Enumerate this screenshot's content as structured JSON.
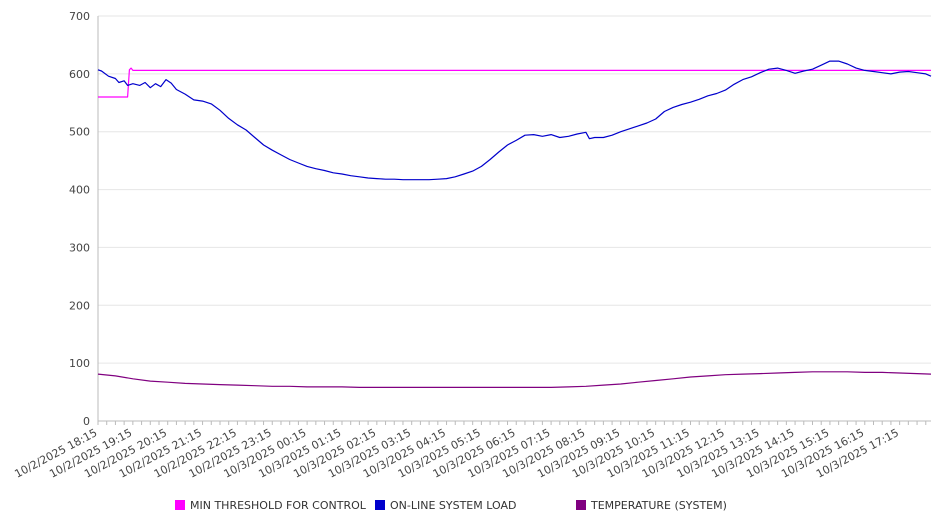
{
  "chart_data": {
    "type": "line",
    "title": "",
    "xlabel": "",
    "ylabel": "",
    "ylim": [
      0,
      700
    ],
    "y_ticks": [
      0,
      100,
      200,
      300,
      400,
      500,
      600,
      700
    ],
    "grid": true,
    "legend_position": "bottom",
    "x_tick_labels": [
      "10/2/2025 18:15",
      "10/2/2025 19:15",
      "10/2/2025 20:15",
      "10/2/2025 21:15",
      "10/2/2025 22:15",
      "10/2/2025 23:15",
      "10/3/2025 00:15",
      "10/3/2025 01:15",
      "10/3/2025 02:15",
      "10/3/2025 03:15",
      "10/3/2025 04:15",
      "10/3/2025 05:15",
      "10/3/2025 06:15",
      "10/3/2025 07:15",
      "10/3/2025 08:15",
      "10/3/2025 09:15",
      "10/3/2025 10:15",
      "10/3/2025 11:15",
      "10/3/2025 12:15",
      "10/3/2025 13:15",
      "10/3/2025 14:15",
      "10/3/2025 15:15",
      "10/3/2025 16:15",
      "10/3/2025 17:15"
    ],
    "x_unit": "hours from 10/2/2025 18:15",
    "x_max": 23.9,
    "series": [
      {
        "name": "MIN THRESHOLD FOR CONTROL",
        "color": "#ff00ff",
        "points": [
          [
            0,
            560
          ],
          [
            0.85,
            560
          ],
          [
            0.9,
            607
          ],
          [
            0.95,
            610
          ],
          [
            1.0,
            606
          ],
          [
            23.9,
            606
          ]
        ]
      },
      {
        "name": "ON-LINE SYSTEM LOAD",
        "color": "#0000cc",
        "points": [
          [
            0,
            607
          ],
          [
            0.1,
            605
          ],
          [
            0.3,
            596
          ],
          [
            0.5,
            592
          ],
          [
            0.6,
            585
          ],
          [
            0.75,
            588
          ],
          [
            0.85,
            580
          ],
          [
            1.0,
            583
          ],
          [
            1.2,
            580
          ],
          [
            1.35,
            585
          ],
          [
            1.5,
            576
          ],
          [
            1.65,
            583
          ],
          [
            1.8,
            578
          ],
          [
            1.95,
            590
          ],
          [
            2.1,
            584
          ],
          [
            2.25,
            573
          ],
          [
            2.5,
            565
          ],
          [
            2.75,
            555
          ],
          [
            3.0,
            553
          ],
          [
            3.25,
            548
          ],
          [
            3.5,
            537
          ],
          [
            3.75,
            523
          ],
          [
            4.0,
            512
          ],
          [
            4.25,
            503
          ],
          [
            4.5,
            490
          ],
          [
            4.75,
            477
          ],
          [
            5.0,
            468
          ],
          [
            5.25,
            460
          ],
          [
            5.5,
            452
          ],
          [
            5.75,
            446
          ],
          [
            6.0,
            440
          ],
          [
            6.25,
            436
          ],
          [
            6.5,
            433
          ],
          [
            6.75,
            429
          ],
          [
            7.0,
            427
          ],
          [
            7.25,
            424
          ],
          [
            7.5,
            422
          ],
          [
            7.75,
            420
          ],
          [
            8.0,
            419
          ],
          [
            8.25,
            418
          ],
          [
            8.5,
            418
          ],
          [
            8.75,
            417
          ],
          [
            9.0,
            417
          ],
          [
            9.25,
            417
          ],
          [
            9.5,
            417
          ],
          [
            9.75,
            418
          ],
          [
            10.0,
            419
          ],
          [
            10.25,
            422
          ],
          [
            10.5,
            427
          ],
          [
            10.75,
            432
          ],
          [
            11.0,
            440
          ],
          [
            11.25,
            452
          ],
          [
            11.5,
            465
          ],
          [
            11.75,
            477
          ],
          [
            12.0,
            485
          ],
          [
            12.25,
            494
          ],
          [
            12.5,
            495
          ],
          [
            12.75,
            492
          ],
          [
            13.0,
            495
          ],
          [
            13.25,
            490
          ],
          [
            13.5,
            492
          ],
          [
            13.75,
            496
          ],
          [
            14.0,
            499
          ],
          [
            14.1,
            488
          ],
          [
            14.25,
            490
          ],
          [
            14.5,
            490
          ],
          [
            14.75,
            494
          ],
          [
            15.0,
            500
          ],
          [
            15.25,
            505
          ],
          [
            15.5,
            510
          ],
          [
            15.75,
            515
          ],
          [
            16.0,
            522
          ],
          [
            16.25,
            535
          ],
          [
            16.5,
            542
          ],
          [
            16.75,
            547
          ],
          [
            17.0,
            551
          ],
          [
            17.25,
            556
          ],
          [
            17.5,
            562
          ],
          [
            17.75,
            566
          ],
          [
            18.0,
            572
          ],
          [
            18.25,
            582
          ],
          [
            18.5,
            590
          ],
          [
            18.75,
            595
          ],
          [
            19.0,
            602
          ],
          [
            19.25,
            608
          ],
          [
            19.5,
            610
          ],
          [
            19.75,
            606
          ],
          [
            20.0,
            601
          ],
          [
            20.25,
            605
          ],
          [
            20.5,
            608
          ],
          [
            20.75,
            615
          ],
          [
            21.0,
            622
          ],
          [
            21.25,
            622
          ],
          [
            21.5,
            617
          ],
          [
            21.75,
            610
          ],
          [
            22.0,
            606
          ],
          [
            22.25,
            604
          ],
          [
            22.5,
            602
          ],
          [
            22.75,
            600
          ],
          [
            23.0,
            603
          ],
          [
            23.25,
            604
          ],
          [
            23.5,
            602
          ],
          [
            23.75,
            600
          ],
          [
            23.9,
            596
          ]
        ]
      },
      {
        "name": "TEMPERATURE (SYSTEM)",
        "color": "#800080",
        "points": [
          [
            0,
            81
          ],
          [
            0.5,
            78
          ],
          [
            1.0,
            73
          ],
          [
            1.5,
            69
          ],
          [
            2.0,
            67
          ],
          [
            2.5,
            65
          ],
          [
            3.0,
            64
          ],
          [
            3.5,
            63
          ],
          [
            4.0,
            62
          ],
          [
            4.5,
            61
          ],
          [
            5.0,
            60
          ],
          [
            5.5,
            60
          ],
          [
            6.0,
            59
          ],
          [
            6.5,
            59
          ],
          [
            7.0,
            59
          ],
          [
            7.5,
            58
          ],
          [
            8.0,
            58
          ],
          [
            8.5,
            58
          ],
          [
            9.0,
            58
          ],
          [
            9.5,
            58
          ],
          [
            10.0,
            58
          ],
          [
            10.5,
            58
          ],
          [
            11.0,
            58
          ],
          [
            11.5,
            58
          ],
          [
            12.0,
            58
          ],
          [
            12.5,
            58
          ],
          [
            13.0,
            58
          ],
          [
            13.5,
            59
          ],
          [
            14.0,
            60
          ],
          [
            14.5,
            62
          ],
          [
            15.0,
            64
          ],
          [
            15.5,
            67
          ],
          [
            16.0,
            70
          ],
          [
            16.5,
            73
          ],
          [
            17.0,
            76
          ],
          [
            17.5,
            78
          ],
          [
            18.0,
            80
          ],
          [
            18.5,
            81
          ],
          [
            19.0,
            82
          ],
          [
            19.5,
            83
          ],
          [
            20.0,
            84
          ],
          [
            20.5,
            85
          ],
          [
            21.0,
            85
          ],
          [
            21.5,
            85
          ],
          [
            22.0,
            84
          ],
          [
            22.5,
            84
          ],
          [
            23.0,
            83
          ],
          [
            23.5,
            82
          ],
          [
            23.9,
            81
          ]
        ]
      }
    ]
  }
}
